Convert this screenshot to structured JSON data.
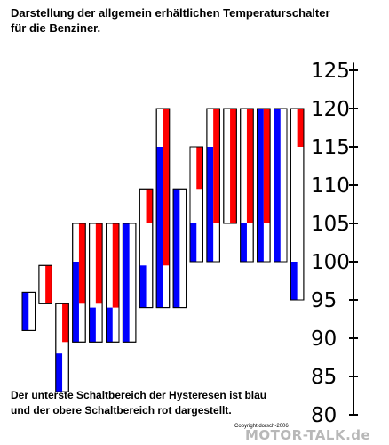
{
  "title_lines": [
    "Darstellung der allgemein erhältlichen Temperaturschalter",
    "für die Benziner."
  ],
  "caption_lines": [
    "Der unterste Schaltbereich der Hysteresen ist blau",
    "und der obere Schaltbereich rot dargestellt."
  ],
  "copyright": "Copyright dorsch-2006",
  "watermark": "MOTOR-TALK.de",
  "colors": {
    "blue": "#0000ff",
    "red": "#ff0000",
    "white": "#ffffff",
    "outline": "#000000"
  },
  "chart_data": {
    "type": "range-bar",
    "title": "Darstellung der allgemein erhältlichen Temperaturschalter für die Benziner.",
    "y_axis": {
      "position": "right",
      "ylim": [
        80,
        126
      ],
      "ticks": [
        80,
        85,
        90,
        95,
        100,
        105,
        110,
        115,
        120,
        125
      ]
    },
    "note": "Der unterste Schaltbereich der Hysteresen ist blau und der obere Schaltbereich rot dargestellt.",
    "switches": [
      {
        "blue": [
          91,
          96
        ],
        "red": null
      },
      {
        "blue": null,
        "red": [
          94.5,
          99.5
        ]
      },
      {
        "blue": [
          83,
          88
        ],
        "red": [
          89.5,
          94.5
        ]
      },
      {
        "blue": [
          89.5,
          100
        ],
        "red": [
          94.5,
          105
        ]
      },
      {
        "blue": [
          89.5,
          94
        ],
        "red": [
          94.5,
          105
        ]
      },
      {
        "blue": [
          89.5,
          94
        ],
        "red": [
          94,
          105
        ]
      },
      {
        "blue": [
          89.5,
          105
        ],
        "red": null
      },
      {
        "blue": [
          94,
          99.5
        ],
        "red": [
          105,
          109.5
        ]
      },
      {
        "blue": [
          94,
          115
        ],
        "red": [
          99.5,
          120
        ]
      },
      {
        "blue": [
          94,
          109.5
        ],
        "red": null
      },
      {
        "blue": [
          100,
          105
        ],
        "red": [
          109.5,
          115
        ]
      },
      {
        "blue": [
          100,
          115
        ],
        "red": [
          105,
          120
        ]
      },
      {
        "blue": null,
        "red": [
          105,
          120
        ]
      },
      {
        "blue": [
          100,
          105
        ],
        "red": [
          105,
          120
        ]
      },
      {
        "blue": [
          100,
          120
        ],
        "red": [
          105,
          120
        ]
      },
      {
        "blue": [
          100,
          120
        ],
        "red": null
      },
      {
        "blue": [
          95,
          100
        ],
        "red": [
          115,
          120
        ]
      }
    ]
  }
}
